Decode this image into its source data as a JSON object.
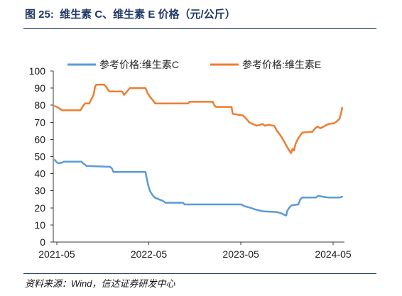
{
  "chart_data": {
    "type": "line",
    "title": "图 25:  维生素 C、维生素 E 价格（元/公斤）",
    "x_axis": {
      "range": [
        "2021-04-17",
        "2024-06-15"
      ],
      "ticks": [
        "2021-05",
        "2022-05",
        "2023-05",
        "2024-05"
      ]
    },
    "y_axis": {
      "range": [
        0,
        100
      ],
      "ticks": [
        0,
        10,
        20,
        30,
        40,
        50,
        60,
        70,
        80,
        90,
        100
      ]
    },
    "grid": false,
    "legend": "top",
    "series": [
      {
        "name": "参考价格:维生素C",
        "color": "#5B9BD5",
        "points": [
          [
            "2021-04-23",
            48
          ],
          [
            "2021-05-01",
            46.5
          ],
          [
            "2021-05-09",
            46
          ],
          [
            "2021-05-23",
            46.5
          ],
          [
            "2021-05-29",
            47
          ],
          [
            "2021-08-07",
            47
          ],
          [
            "2021-08-13",
            46
          ],
          [
            "2021-08-27",
            44.5
          ],
          [
            "2021-11-28",
            44
          ],
          [
            "2021-12-06",
            43
          ],
          [
            "2021-12-12",
            41
          ],
          [
            "2022-04-18",
            41
          ],
          [
            "2022-04-23",
            37
          ],
          [
            "2022-04-29",
            33
          ],
          [
            "2022-05-05",
            30
          ],
          [
            "2022-05-13",
            28
          ],
          [
            "2022-05-24",
            26
          ],
          [
            "2022-06-10",
            25
          ],
          [
            "2022-06-27",
            24
          ],
          [
            "2022-07-06",
            23
          ],
          [
            "2022-09-14",
            23
          ],
          [
            "2022-09-20",
            22
          ],
          [
            "2023-05-03",
            22
          ],
          [
            "2023-05-15",
            21
          ],
          [
            "2023-06-09",
            20
          ],
          [
            "2023-06-28",
            19
          ],
          [
            "2023-07-27",
            18
          ],
          [
            "2023-09-21",
            17.5
          ],
          [
            "2023-10-05",
            17
          ],
          [
            "2023-10-19",
            16
          ],
          [
            "2023-10-28",
            15.5
          ],
          [
            "2023-11-02",
            18.5
          ],
          [
            "2023-11-11",
            20.5
          ],
          [
            "2023-11-19",
            21.5
          ],
          [
            "2023-12-15",
            22
          ],
          [
            "2023-12-23",
            25
          ],
          [
            "2023-12-31",
            26
          ],
          [
            "2024-02-23",
            26
          ],
          [
            "2024-03-02",
            27
          ],
          [
            "2024-03-22",
            26.5
          ],
          [
            "2024-04-11",
            26
          ],
          [
            "2024-05-26",
            26
          ],
          [
            "2024-06-06",
            26.5
          ]
        ]
      },
      {
        "name": "参考价格:维生素E",
        "color": "#ED7D31",
        "points": [
          [
            "2021-04-23",
            79.5
          ],
          [
            "2021-05-01",
            79
          ],
          [
            "2021-05-12",
            78
          ],
          [
            "2021-05-23",
            77
          ],
          [
            "2021-08-02",
            77
          ],
          [
            "2021-08-07",
            78
          ],
          [
            "2021-08-13",
            79.5
          ],
          [
            "2021-08-21",
            81
          ],
          [
            "2021-09-07",
            81
          ],
          [
            "2021-09-13",
            83
          ],
          [
            "2021-09-24",
            86
          ],
          [
            "2021-09-30",
            91
          ],
          [
            "2021-10-05",
            92
          ],
          [
            "2021-11-05",
            92
          ],
          [
            "2021-11-14",
            90.5
          ],
          [
            "2021-11-25",
            88
          ],
          [
            "2022-01-15",
            88
          ],
          [
            "2022-01-23",
            86
          ],
          [
            "2022-02-01",
            87.5
          ],
          [
            "2022-02-09",
            89
          ],
          [
            "2022-02-15",
            90
          ],
          [
            "2022-04-18",
            90
          ],
          [
            "2022-04-26",
            87
          ],
          [
            "2022-05-05",
            85
          ],
          [
            "2022-05-16",
            83
          ],
          [
            "2022-05-27",
            81
          ],
          [
            "2022-10-04",
            81
          ],
          [
            "2022-10-09",
            82
          ],
          [
            "2023-01-10",
            82
          ],
          [
            "2023-01-16",
            80
          ],
          [
            "2023-01-22",
            79
          ],
          [
            "2023-03-25",
            79
          ],
          [
            "2023-03-30",
            75
          ],
          [
            "2023-04-19",
            74.5
          ],
          [
            "2023-05-09",
            74
          ],
          [
            "2023-05-20",
            72.5
          ],
          [
            "2023-05-29",
            71
          ],
          [
            "2023-06-03",
            70
          ],
          [
            "2023-06-17",
            69
          ],
          [
            "2023-07-04",
            68
          ],
          [
            "2023-07-15",
            68.5
          ],
          [
            "2023-07-27",
            69
          ],
          [
            "2023-08-04",
            68
          ],
          [
            "2023-08-18",
            68.5
          ],
          [
            "2023-09-10",
            68
          ],
          [
            "2023-09-21",
            65
          ],
          [
            "2023-10-02",
            63
          ],
          [
            "2023-10-11",
            61
          ],
          [
            "2023-10-19",
            59
          ],
          [
            "2023-10-28",
            56.5
          ],
          [
            "2023-11-05",
            54.5
          ],
          [
            "2023-11-11",
            53
          ],
          [
            "2023-11-16",
            52
          ],
          [
            "2023-11-22",
            54.5
          ],
          [
            "2023-11-28",
            53.5
          ],
          [
            "2023-12-03",
            57
          ],
          [
            "2023-12-12",
            60
          ],
          [
            "2023-12-23",
            62.5
          ],
          [
            "2023-12-31",
            64
          ],
          [
            "2024-02-09",
            64.5
          ],
          [
            "2024-02-20",
            66.5
          ],
          [
            "2024-02-29",
            67.5
          ],
          [
            "2024-03-11",
            66.5
          ],
          [
            "2024-03-25",
            67.5
          ],
          [
            "2024-04-05",
            68.5
          ],
          [
            "2024-04-14",
            69
          ],
          [
            "2024-05-06",
            69.5
          ],
          [
            "2024-05-15",
            70.5
          ],
          [
            "2024-05-26",
            72
          ],
          [
            "2024-06-01",
            75
          ],
          [
            "2024-06-06",
            78.5
          ]
        ]
      }
    ]
  },
  "source": "资料来源：Wind，信达证券研发中心"
}
